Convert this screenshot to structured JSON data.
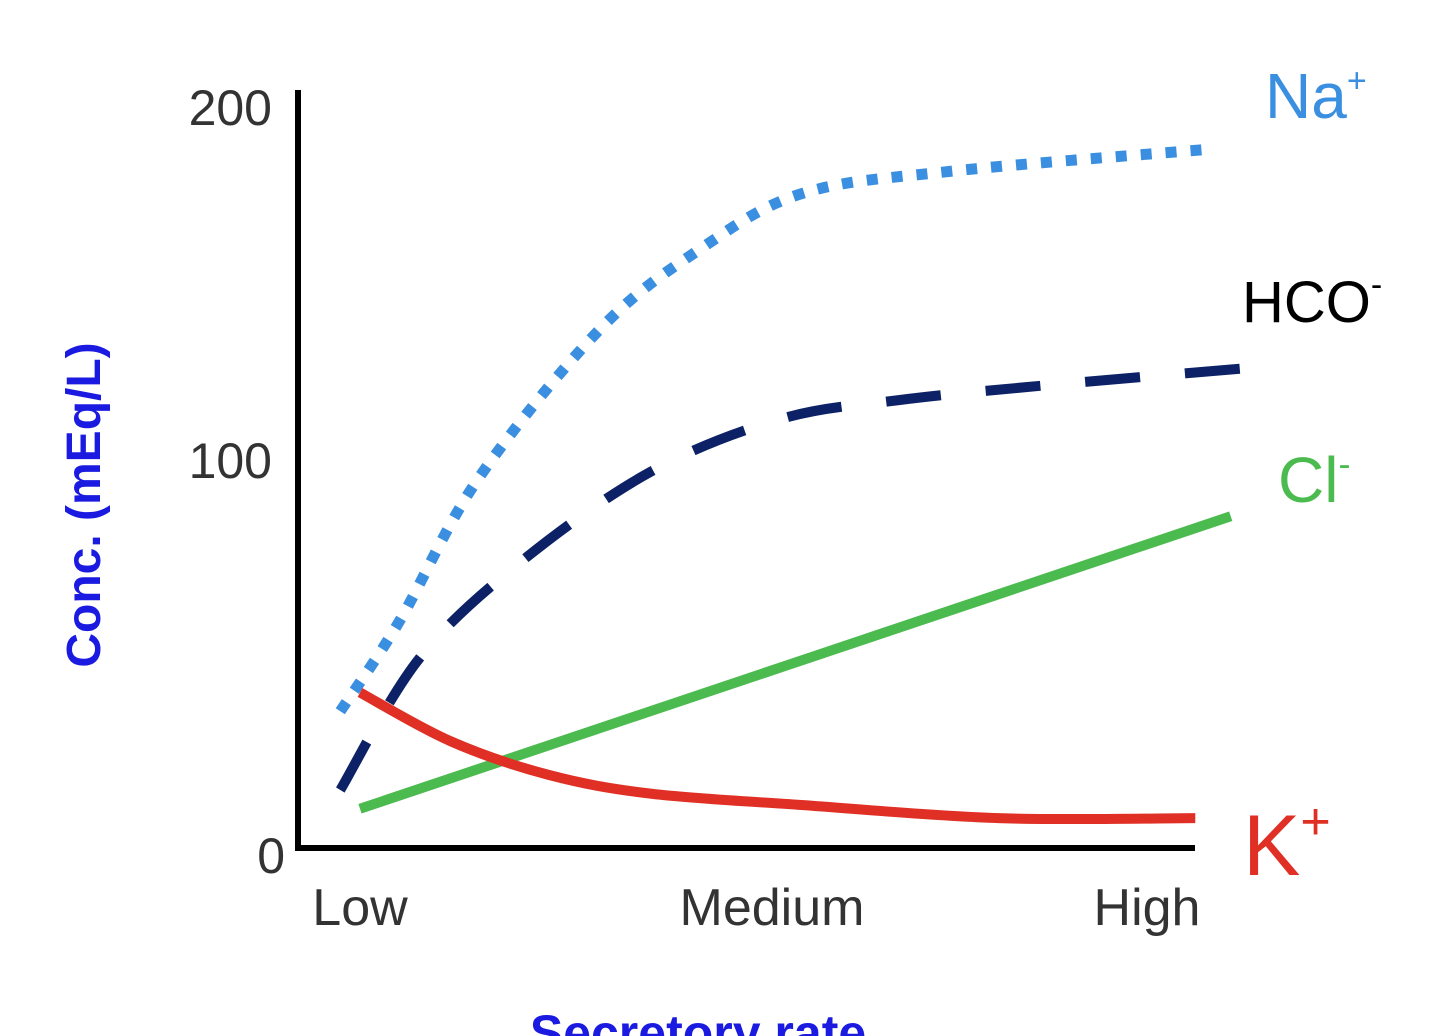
{
  "chart_data": {
    "type": "line",
    "title": "",
    "xlabel": "Secretory rate",
    "ylabel": "Conc. (mEq/L)",
    "x_categories": [
      "Low",
      "Medium",
      "High"
    ],
    "xlim": [
      -0.1,
      2.35
    ],
    "ylim": [
      0,
      200
    ],
    "yticks": [
      0,
      100,
      200
    ],
    "grid": false,
    "legend": "inline labels at line ends",
    "series": [
      {
        "name": "Na+",
        "label_main": "Na",
        "label_sup": "+",
        "color": "#3b8fe0",
        "style": "dotted",
        "x": [
          -0.05,
          0.1,
          0.3,
          0.61,
          0.86,
          1.12,
          1.5,
          2.17
        ],
        "y": [
          37,
          61,
          99,
          139,
          160,
          175,
          181,
          187
        ]
      },
      {
        "name": "HCO-",
        "label_main": "HCO",
        "label_sup": "-",
        "color": "#0d2266",
        "style": "dashed",
        "x": [
          -0.05,
          0.15,
          0.41,
          0.74,
          1.07,
          1.37,
          1.75,
          2.31
        ],
        "y": [
          16,
          51,
          77,
          101,
          115,
          120,
          124,
          129
        ]
      },
      {
        "name": "Cl-",
        "label_main": "Cl",
        "label_sup": "-",
        "color": "#4cbb4f",
        "style": "solid",
        "x": [
          0,
          2.21
        ],
        "y": [
          11,
          89
        ]
      },
      {
        "name": "K+",
        "label_main": "K",
        "label_sup": "+",
        "color": "#e03025",
        "style": "solid",
        "x": [
          0,
          0.23,
          0.48,
          0.74,
          1.12,
          1.62,
          2.12
        ],
        "y": [
          42,
          29,
          20,
          15,
          12,
          8.5,
          8.5
        ]
      }
    ]
  }
}
